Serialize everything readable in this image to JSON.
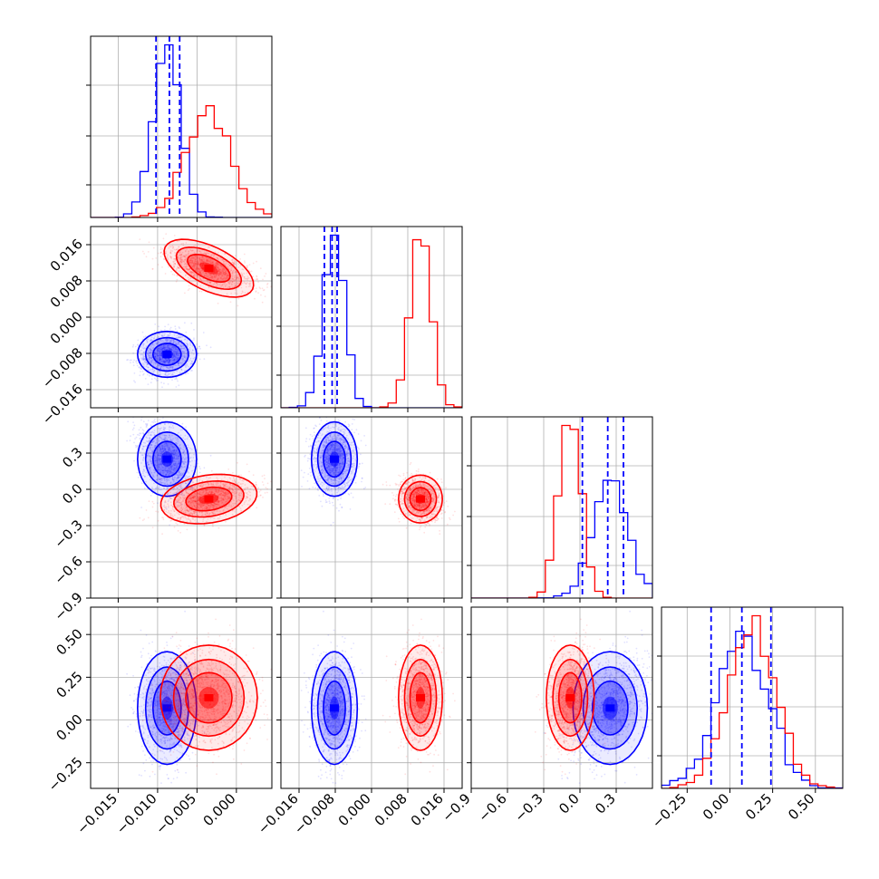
{
  "chart_data": {
    "type": "corner",
    "variables": [
      {
        "range": [
          -0.0185,
          0.0045
        ],
        "ticks": [
          -0.015,
          -0.01,
          -0.005,
          0.0
        ],
        "tick_labels": [
          "−0.015",
          "−0.010",
          "−0.005",
          "0.000"
        ]
      },
      {
        "range": [
          -0.02,
          0.02
        ],
        "ticks": [
          -0.016,
          -0.008,
          0.0,
          0.008,
          0.016
        ],
        "tick_labels": [
          "−0.016",
          "−0.008",
          "0.000",
          "0.008",
          "0.016"
        ]
      },
      {
        "range": [
          -0.9,
          0.6
        ],
        "ticks": [
          -0.9,
          -0.6,
          -0.3,
          0.0,
          0.3
        ],
        "tick_labels": [
          "−0.9",
          "−0.6",
          "−0.3",
          "0.0",
          "0.3"
        ]
      },
      {
        "range": [
          -0.4,
          0.66
        ],
        "ticks": [
          -0.25,
          0.0,
          0.25,
          0.5
        ],
        "tick_labels": [
          "−0.25",
          "0.00",
          "0.25",
          "0.50"
        ]
      }
    ],
    "series": [
      {
        "color": "#0000ff",
        "means": [
          -0.0088,
          -0.0082,
          0.25,
          0.07
        ],
        "stds": [
          0.0017,
          0.0023,
          0.14,
          0.15
        ],
        "quantiles": [
          [
            -0.0102,
            -0.0085,
            -0.0072
          ],
          [
            -0.0104,
            -0.0087,
            -0.0076
          ],
          [
            0.02,
            0.23,
            0.36
          ],
          [
            -0.11,
            0.07,
            0.24
          ]
        ]
      },
      {
        "color": "#ff0000",
        "means": [
          -0.0035,
          0.0108,
          -0.08,
          0.13
        ],
        "stds": [
          0.0028,
          0.0022,
          0.09,
          0.14
        ]
      }
    ],
    "grid": true,
    "legend": "none"
  }
}
